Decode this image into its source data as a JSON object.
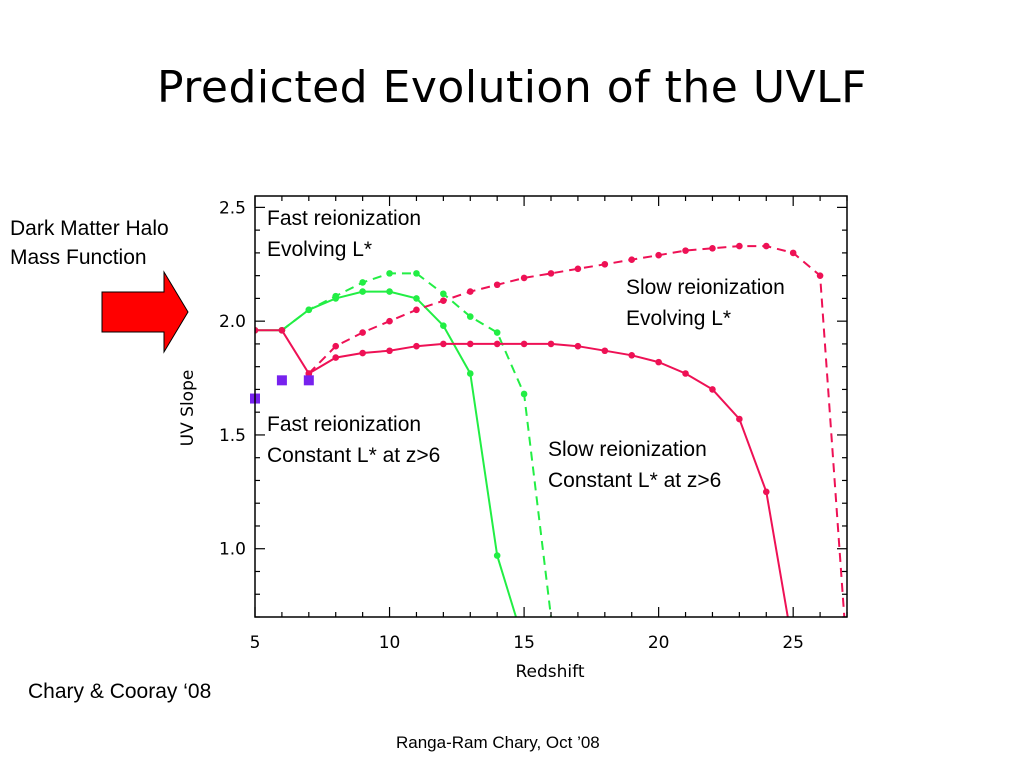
{
  "slide": {
    "title": "Predicted Evolution of the UVLF",
    "side_label_line1": "Dark Matter Halo",
    "side_label_line2": "Mass Function",
    "citation": "Chary & Cooray ‘08",
    "footer": "Ranga-Ram Chary, Oct ’08"
  },
  "colors": {
    "fast": "#22ee44",
    "slow": "#ee1155",
    "points": "#7722ee",
    "arrow": "#ff0000"
  },
  "chart_data": {
    "type": "line",
    "xlabel": "Redshift",
    "ylabel": "UV Slope",
    "xlim": [
      5,
      27
    ],
    "ylim": [
      0.7,
      2.55
    ],
    "xticks": [
      5,
      10,
      15,
      20,
      25
    ],
    "yticks": [
      1.0,
      1.5,
      2.0,
      2.5
    ],
    "xtick_labels": [
      "5",
      "10",
      "15",
      "20",
      "25"
    ],
    "ytick_labels": [
      "1.0",
      "1.5",
      "2.0",
      "2.5"
    ],
    "series": [
      {
        "name": "Fast reionization Evolving L*",
        "color": "#22ee44",
        "dashed": true,
        "x": [
          6,
          7,
          8,
          9,
          10,
          11,
          12,
          13,
          14,
          15,
          16
        ],
        "y": [
          1.96,
          2.05,
          2.11,
          2.17,
          2.21,
          2.21,
          2.12,
          2.02,
          1.95,
          1.68,
          0.7
        ]
      },
      {
        "name": "Fast reionization Constant L* at z>6",
        "color": "#22ee44",
        "dashed": false,
        "x": [
          5,
          6,
          7,
          8,
          9,
          10,
          11,
          12,
          13,
          14,
          14.7
        ],
        "y": [
          1.96,
          1.96,
          2.05,
          2.1,
          2.13,
          2.13,
          2.1,
          1.98,
          1.77,
          0.97,
          0.7
        ]
      },
      {
        "name": "Slow reionization Evolving L*",
        "color": "#ee1155",
        "dashed": true,
        "x": [
          7,
          8,
          9,
          10,
          11,
          12,
          13,
          14,
          15,
          16,
          17,
          18,
          19,
          20,
          21,
          22,
          23,
          24,
          25,
          26,
          26.9
        ],
        "y": [
          1.77,
          1.89,
          1.95,
          2.0,
          2.05,
          2.09,
          2.13,
          2.16,
          2.19,
          2.21,
          2.23,
          2.25,
          2.27,
          2.29,
          2.31,
          2.32,
          2.33,
          2.33,
          2.3,
          2.2,
          0.7
        ]
      },
      {
        "name": "Slow reionization Constant L* at z>6",
        "color": "#ee1155",
        "dashed": false,
        "x": [
          5,
          6,
          7,
          8,
          9,
          10,
          11,
          12,
          13,
          14,
          15,
          16,
          17,
          18,
          19,
          20,
          21,
          22,
          23,
          24,
          24.8
        ],
        "y": [
          1.96,
          1.96,
          1.77,
          1.84,
          1.86,
          1.87,
          1.89,
          1.9,
          1.9,
          1.9,
          1.9,
          1.9,
          1.89,
          1.87,
          1.85,
          1.82,
          1.77,
          1.7,
          1.57,
          1.25,
          0.7
        ]
      }
    ],
    "observed_points": {
      "x": [
        5,
        6,
        7
      ],
      "y": [
        1.66,
        1.74,
        1.74
      ]
    },
    "annotations": [
      {
        "line1": "Fast reionization",
        "line2": "Evolving L*"
      },
      {
        "line1": "Slow reionization",
        "line2": "Evolving L*"
      },
      {
        "line1": "Fast reionization",
        "line2": "Constant L* at z>6"
      },
      {
        "line1": "Slow reionization",
        "line2": "Constant L* at z>6"
      }
    ]
  }
}
